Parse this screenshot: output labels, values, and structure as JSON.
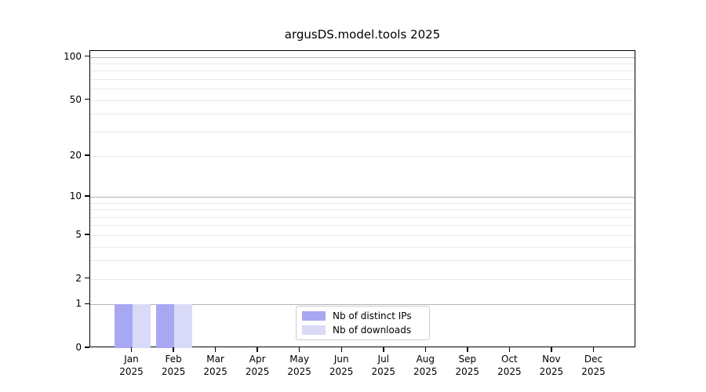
{
  "chart_data": {
    "type": "bar",
    "title": "argusDS.model.tools 2025",
    "categories": [
      "Jan",
      "Feb",
      "Mar",
      "Apr",
      "May",
      "Jun",
      "Jul",
      "Aug",
      "Sep",
      "Oct",
      "Nov",
      "Dec"
    ],
    "category_year": "2025",
    "series": [
      {
        "name": "Nb of distinct IPs",
        "color": "#a8a8f2",
        "values": [
          1,
          1,
          0,
          0,
          0,
          0,
          0,
          0,
          0,
          0,
          0,
          0
        ]
      },
      {
        "name": "Nb of downloads",
        "color": "#d9d9f8",
        "values": [
          1,
          1,
          0,
          0,
          0,
          0,
          0,
          0,
          0,
          0,
          0,
          0
        ]
      }
    ],
    "yscale": "log1p",
    "ylim": [
      0,
      110
    ],
    "ytick_values": [
      0,
      1,
      2,
      5,
      10,
      20,
      50,
      100
    ],
    "ymajor_gridlines": [
      1,
      10,
      100
    ],
    "yminor_gridlines": [
      2,
      3,
      4,
      5,
      6,
      7,
      8,
      9,
      20,
      30,
      40,
      50,
      60,
      70,
      80,
      90
    ],
    "grid": "horizontal",
    "legend_position": "lower center",
    "colors": {
      "major_grid": "#b3b3b3",
      "minor_grid": "#e9e9e9",
      "spine": "#000000",
      "text": "#000000",
      "background": "#ffffff"
    }
  }
}
